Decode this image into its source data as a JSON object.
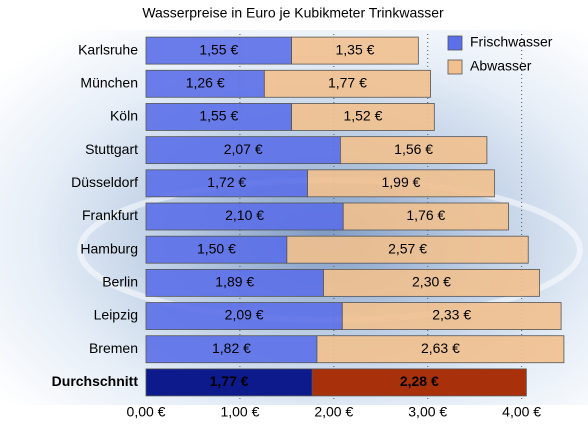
{
  "chart_data": {
    "type": "stacked-barh",
    "title": "Wasserpreise in Euro je Kubikmeter Trinkwasser",
    "categories": [
      "Karlsruhe",
      "München",
      "Köln",
      "Stuttgart",
      "Düsseldorf",
      "Frankfurt",
      "Hamburg",
      "Berlin",
      "Leipzig",
      "Bremen",
      "Durchschnitt"
    ],
    "series": [
      {
        "name": "Frischwasser",
        "color": "#5b6fe8",
        "colors": [
          "#5b6fe8",
          "#5b6fe8",
          "#5b6fe8",
          "#5b6fe8",
          "#5b6fe8",
          "#5b6fe8",
          "#5b6fe8",
          "#5b6fe8",
          "#5b6fe8",
          "#5b6fe8",
          "#0d1a8c"
        ],
        "values": [
          1.55,
          1.26,
          1.55,
          2.07,
          1.72,
          2.1,
          1.5,
          1.89,
          2.09,
          1.82,
          1.77
        ],
        "value_labels": [
          "1,55 €",
          "1,26 €",
          "1,55 €",
          "2,07 €",
          "1,72 €",
          "2,10 €",
          "1,50 €",
          "1,89 €",
          "2,09 €",
          "1,82 €",
          "1,77 €"
        ]
      },
      {
        "name": "Abwasser",
        "color": "#f1c08e",
        "colors": [
          "#f1c08e",
          "#f1c08e",
          "#f1c08e",
          "#f1c08e",
          "#f1c08e",
          "#f1c08e",
          "#f1c08e",
          "#f1c08e",
          "#f1c08e",
          "#f1c08e",
          "#a8300a"
        ],
        "values": [
          1.35,
          1.77,
          1.52,
          1.56,
          1.99,
          1.76,
          2.57,
          2.3,
          2.33,
          2.63,
          2.28
        ],
        "value_labels": [
          "1,35 €",
          "1,77 €",
          "1,52 €",
          "1,56 €",
          "1,99 €",
          "1,76 €",
          "2,57 €",
          "2,30 €",
          "2,33 €",
          "2,63 €",
          "2,28 €"
        ]
      }
    ],
    "xlim": [
      0,
      4.6
    ],
    "xticks": [
      {
        "value": 0,
        "label": "0,00 €"
      },
      {
        "value": 1,
        "label": "1,00 €"
      },
      {
        "value": 2,
        "label": "2,00 €"
      },
      {
        "value": 3,
        "label": "3,00 €"
      },
      {
        "value": 4,
        "label": "4,00 €"
      }
    ],
    "grid": true,
    "legend": "top-right"
  }
}
